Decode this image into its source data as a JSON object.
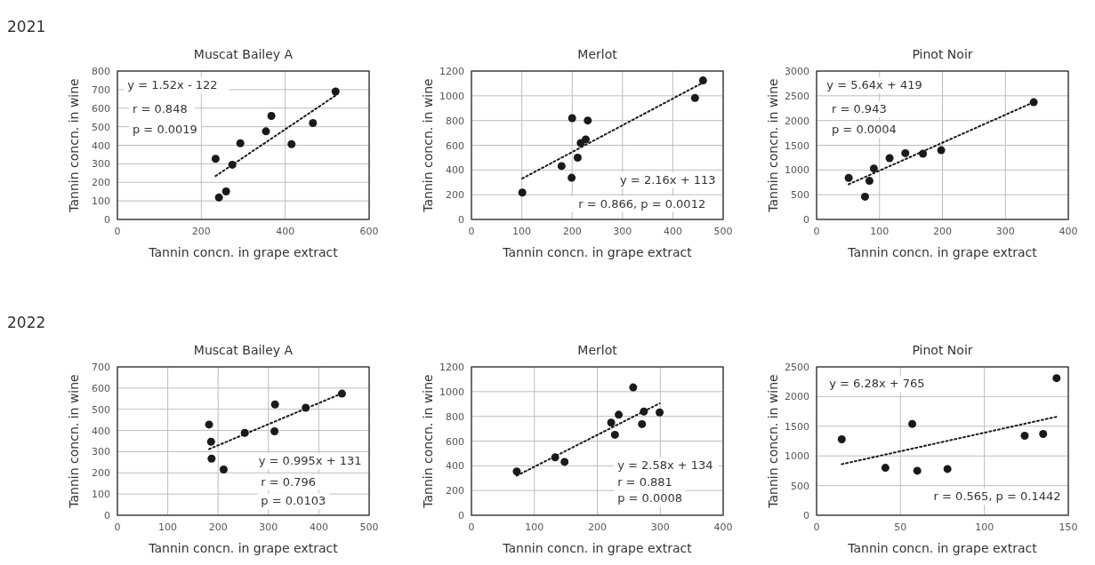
{
  "chart_data": [
    {
      "type": "scatter",
      "subtitle": "2021",
      "title": "Muscat Bailey A",
      "xlabel": "Tannin concn. in grape extract",
      "ylabel": "Tannin concn. in wine",
      "xlim": [
        0,
        600
      ],
      "xticks": [
        0,
        200,
        400,
        600
      ],
      "ylim": [
        0,
        800
      ],
      "yticks": [
        0,
        100,
        200,
        300,
        400,
        500,
        600,
        700,
        800
      ],
      "grid": true,
      "series": [
        {
          "color": "#1a1a1a",
          "marker": "circle",
          "x": [
            234,
            242,
            259,
            274,
            293,
            354,
            367,
            415,
            466,
            520
          ],
          "values": [
            327,
            118,
            151,
            295,
            411,
            475,
            558,
            406,
            520,
            690
          ]
        },
        {
          "type": "line",
          "color": "#1a1a1a",
          "marker": "none",
          "line_style": "dotted",
          "x": [
            234,
            520
          ],
          "values": [
            234,
            668
          ]
        }
      ],
      "annotations": [
        "y = 1.52x - 122",
        "r = 0.848",
        "p = 0.0019"
      ]
    },
    {
      "type": "scatter",
      "title": "Merlot",
      "xlabel": "Tannin concn. in grape extract",
      "ylabel": "Tannin concn. in wine",
      "xlim": [
        0,
        500
      ],
      "xticks": [
        0,
        100,
        200,
        300,
        400,
        500
      ],
      "ylim": [
        0,
        1200
      ],
      "yticks": [
        0,
        200,
        400,
        600,
        800,
        1000,
        1200
      ],
      "grid": true,
      "series": [
        {
          "color": "#1a1a1a",
          "marker": "circle",
          "x": [
            101,
            179,
            199,
            200,
            211,
            217,
            227,
            231,
            444,
            460
          ],
          "values": [
            217,
            432,
            337,
            819,
            499,
            618,
            647,
            800,
            983,
            1124
          ]
        },
        {
          "type": "line",
          "color": "#1a1a1a",
          "marker": "none",
          "line_style": "dotted",
          "x": [
            101,
            460
          ],
          "values": [
            331,
            1107
          ]
        }
      ],
      "annotations": [
        "y = 2.16x + 113",
        "r = 0.866, p = 0.0012"
      ]
    },
    {
      "type": "scatter",
      "title": "Pinot Noir",
      "xlabel": "Tannin concn. in grape extract",
      "ylabel": "Tannin concn. in wine",
      "xlim": [
        0,
        400
      ],
      "xticks": [
        0,
        100,
        200,
        300,
        400
      ],
      "ylim": [
        0,
        3000
      ],
      "yticks": [
        0,
        500,
        1000,
        1500,
        2000,
        2500,
        3000
      ],
      "grid": true,
      "series": [
        {
          "color": "#1a1a1a",
          "marker": "circle",
          "x": [
            51,
            77,
            84,
            91,
            116,
            141,
            169,
            198,
            345
          ],
          "values": [
            840,
            460,
            780,
            1030,
            1240,
            1340,
            1330,
            1400,
            2370
          ]
        },
        {
          "type": "line",
          "color": "#1a1a1a",
          "marker": "none",
          "line_style": "dotted",
          "x": [
            51,
            345
          ],
          "values": [
            710,
            2370
          ]
        }
      ],
      "annotations": [
        "y = 5.64x + 419",
        "r = 0.943",
        "p = 0.0004"
      ]
    },
    {
      "type": "scatter",
      "subtitle": "2022",
      "title": "Muscat Bailey A",
      "xlabel": "Tannin concn. in grape extract",
      "ylabel": "Tannin concn. in wine",
      "xlim": [
        0,
        500
      ],
      "xticks": [
        0,
        100,
        200,
        300,
        400,
        500
      ],
      "ylim": [
        0,
        700
      ],
      "yticks": [
        0,
        100,
        200,
        300,
        400,
        500,
        600,
        700
      ],
      "grid": true,
      "series": [
        {
          "color": "#1a1a1a",
          "marker": "circle",
          "x": [
            182,
            186,
            187,
            211,
            253,
            313,
            312,
            374,
            446
          ],
          "values": [
            428,
            347,
            267,
            216,
            389,
            523,
            396,
            507,
            574
          ]
        },
        {
          "type": "line",
          "color": "#1a1a1a",
          "marker": "none",
          "line_style": "dotted",
          "x": [
            182,
            446
          ],
          "values": [
            312,
            575
          ]
        }
      ],
      "annotations": [
        "y = 0.995x + 131",
        "r = 0.796",
        "p = 0.0103"
      ]
    },
    {
      "type": "scatter",
      "title": "Merlot",
      "xlabel": "Tannin concn. in grape extract",
      "ylabel": "Tannin concn. in wine",
      "xlim": [
        0,
        400
      ],
      "xticks": [
        0,
        100,
        200,
        300,
        400
      ],
      "ylim": [
        0,
        1200
      ],
      "yticks": [
        0,
        200,
        400,
        600,
        800,
        1000,
        1200
      ],
      "grid": true,
      "series": [
        {
          "color": "#1a1a1a",
          "marker": "circle",
          "x": [
            72,
            133,
            148,
            222,
            234,
            228,
            257,
            274,
            271,
            299
          ],
          "values": [
            354,
            468,
            432,
            749,
            813,
            651,
            1034,
            839,
            737,
            832
          ]
        },
        {
          "type": "line",
          "color": "#1a1a1a",
          "marker": "none",
          "line_style": "dotted",
          "x": [
            72,
            299
          ],
          "values": [
            320,
            905
          ]
        }
      ],
      "annotations": [
        "y = 2.58x + 134",
        "r = 0.881",
        "p = 0.0008"
      ]
    },
    {
      "type": "scatter",
      "title": "Pinot Noir",
      "xlabel": "Tannin concn. in grape extract",
      "ylabel": "Tannin concn. in wine",
      "xlim": [
        0,
        150
      ],
      "xticks": [
        0,
        50,
        100,
        150
      ],
      "ylim": [
        0,
        2500
      ],
      "yticks": [
        0,
        500,
        1000,
        1500,
        2000,
        2500
      ],
      "grid": true,
      "series": [
        {
          "color": "#1a1a1a",
          "marker": "circle",
          "x": [
            15,
            41,
            57,
            60,
            78,
            124,
            135,
            143
          ],
          "values": [
            1280,
            800,
            1540,
            750,
            780,
            1340,
            1370,
            2310
          ]
        },
        {
          "type": "line",
          "color": "#1a1a1a",
          "marker": "none",
          "line_style": "dotted",
          "x": [
            15,
            143
          ],
          "values": [
            860,
            1660
          ]
        }
      ],
      "annotations": [
        "y = 6.28x + 765",
        "r = 0.565, p = 0.1442"
      ]
    }
  ]
}
